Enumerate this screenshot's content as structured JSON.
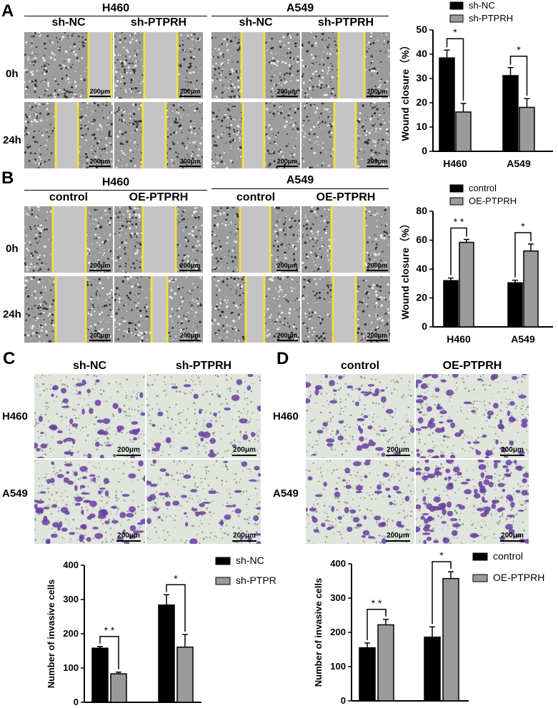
{
  "panels": {
    "A": "A",
    "B": "B",
    "C": "C",
    "D": "D"
  },
  "scale_label": "200μm",
  "colors": {
    "black_bar": "#000000",
    "grey_bar": "#9a9a9a",
    "yellow_line": "#f0e040",
    "crystal_violet": "#6a3fa0"
  },
  "A": {
    "groups": [
      "H460",
      "A549"
    ],
    "conditions": [
      "sh-NC",
      "sh-PTPRH",
      "sh-NC",
      "sh-PTPRH"
    ],
    "rows": [
      "0h",
      "24h"
    ]
  },
  "B": {
    "groups": [
      "H460",
      "A549"
    ],
    "conditions": [
      "control",
      "OE-PTPRH",
      "control",
      "OE-PTPRH"
    ],
    "rows": [
      "0h",
      "24h"
    ]
  },
  "C": {
    "conditions": [
      "sh-NC",
      "sh-PTPRH"
    ],
    "rows": [
      "H460",
      "A549"
    ]
  },
  "D": {
    "conditions": [
      "control",
      "OE-PTPRH"
    ],
    "rows": [
      "H460",
      "A549"
    ]
  },
  "chart_data": [
    {
      "id": "A",
      "type": "bar",
      "categories": [
        "H460",
        "A549"
      ],
      "series": [
        {
          "name": "sh-NC",
          "values": [
            38.5,
            31.2
          ],
          "errors": [
            3.2,
            3.3
          ],
          "color": "#000000"
        },
        {
          "name": "sh-PTPRH",
          "values": [
            16.2,
            18.1
          ],
          "errors": [
            3.5,
            3.6
          ],
          "color": "#9a9a9a"
        }
      ],
      "significance": [
        "*",
        "*"
      ],
      "ylabel": "Wound closure（%）",
      "ylim": [
        0,
        50
      ],
      "yticks": [
        0,
        10,
        20,
        30,
        40,
        50
      ],
      "legend": "top"
    },
    {
      "id": "B",
      "type": "bar",
      "categories": [
        "H460",
        "A549"
      ],
      "series": [
        {
          "name": "control",
          "values": [
            32,
            30.5
          ],
          "errors": [
            1.8,
            1.8
          ],
          "color": "#000000"
        },
        {
          "name": "OE-PTPRH",
          "values": [
            58.5,
            52.5
          ],
          "errors": [
            2,
            4.8
          ],
          "color": "#9a9a9a"
        }
      ],
      "significance": [
        "* *",
        "*"
      ],
      "ylabel": "Wound closure（%）",
      "ylim": [
        0,
        80
      ],
      "yticks": [
        0,
        20,
        40,
        60,
        80
      ],
      "legend": "top"
    },
    {
      "id": "C",
      "type": "bar",
      "categories": [
        "H460",
        "A549"
      ],
      "series": [
        {
          "name": "sh-NC",
          "values": [
            158,
            284
          ],
          "errors": [
            5,
            30
          ],
          "color": "#000000"
        },
        {
          "name": "sh-PTPRH",
          "values": [
            83,
            161
          ],
          "errors": [
            5,
            37
          ],
          "color": "#9a9a9a"
        }
      ],
      "significance": [
        "* *",
        "*"
      ],
      "ylabel": "Number of  invasive cells",
      "ylim": [
        0,
        400
      ],
      "yticks": [
        0,
        100,
        200,
        300,
        400
      ],
      "legend": "right"
    },
    {
      "id": "D",
      "type": "bar",
      "categories": [
        "H460",
        "A549"
      ],
      "series": [
        {
          "name": "control",
          "values": [
            155,
            186
          ],
          "errors": [
            14,
            30
          ],
          "color": "#000000"
        },
        {
          "name": "OE-PTPRH",
          "values": [
            222,
            357
          ],
          "errors": [
            16,
            20
          ],
          "color": "#9a9a9a"
        }
      ],
      "significance": [
        "* *",
        "*"
      ],
      "ylabel": "Number of  invasive cells",
      "ylim": [
        0,
        400
      ],
      "yticks": [
        0,
        100,
        200,
        300,
        400
      ],
      "legend": "right"
    }
  ]
}
